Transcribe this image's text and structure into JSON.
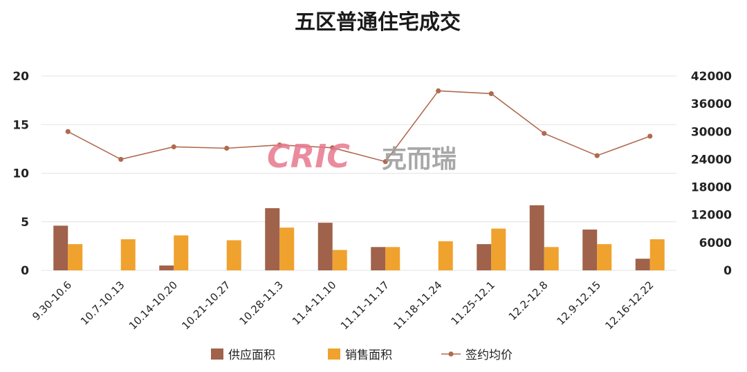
{
  "colors": {
    "supply": "#A0624A",
    "sales": "#F0A22E",
    "price": "#B06A4E",
    "grid": "#E3E3E3",
    "watermark_red": "#E8798E",
    "watermark_gray": "#9A9A9A"
  },
  "watermark": {
    "brand": "CRIC",
    "brand_cn": "克而瑞"
  },
  "chart_data": {
    "type": "bar",
    "title": "五区普通住宅成交",
    "categories": [
      "9.30-10.6",
      "10.7-10.13",
      "10.14-10.20",
      "10.21-10.27",
      "10.28-11.3",
      "11.4-11.10",
      "11.11-11.17",
      "11.18-11.24",
      "11.25-12.1",
      "12.2-12.8",
      "12.9-12.15",
      "12.16-12.22"
    ],
    "series": [
      {
        "name": "供应面积",
        "type": "bar",
        "axis": "left",
        "values": [
          4.6,
          0,
          0.5,
          0,
          6.4,
          4.9,
          2.4,
          0,
          2.7,
          6.7,
          4.2,
          1.2
        ]
      },
      {
        "name": "销售面积",
        "type": "bar",
        "axis": "left",
        "values": [
          2.7,
          3.2,
          3.6,
          3.1,
          4.4,
          2.1,
          2.4,
          3.0,
          4.3,
          2.4,
          2.7,
          3.2
        ]
      },
      {
        "name": "签约均价",
        "type": "line",
        "axis": "right",
        "values": [
          30000,
          24000,
          26700,
          26400,
          27100,
          26500,
          23500,
          38800,
          38200,
          29600,
          24800,
          29000
        ]
      }
    ],
    "y_left": {
      "min": 0,
      "max": 20,
      "ticks": [
        "0",
        "5",
        "10",
        "15",
        "20"
      ]
    },
    "y_right": {
      "min": 0,
      "max": 42000,
      "ticks": [
        "0",
        "6000",
        "12000",
        "18000",
        "24000",
        "30000",
        "36000",
        "42000"
      ]
    },
    "grid": true,
    "legend_position": "bottom"
  }
}
